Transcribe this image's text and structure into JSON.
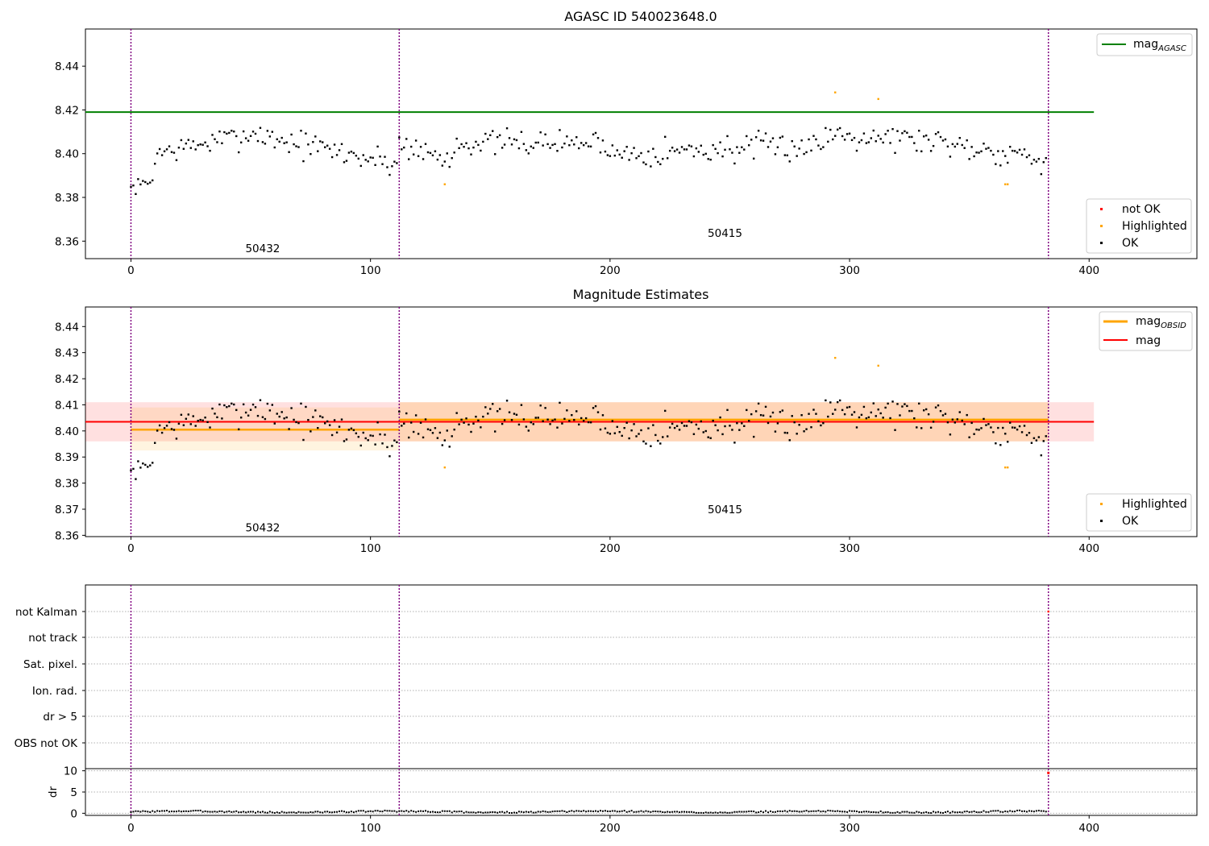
{
  "chart_data": [
    {
      "type": "scatter",
      "title": "AGASC ID 540023648.0",
      "xlabel": "",
      "ylabel": "",
      "xlim": [
        -19,
        445
      ],
      "ylim": [
        8.352,
        8.457
      ],
      "xticks": [
        0,
        100,
        200,
        300,
        400
      ],
      "yticks": [
        8.36,
        8.38,
        8.4,
        8.42,
        8.44
      ],
      "xtick_labels": [
        "0",
        "100",
        "200",
        "300",
        "400"
      ],
      "ytick_labels": [
        "8.36",
        "8.38",
        "8.40",
        "8.42",
        "8.44"
      ],
      "obs_boundaries": [
        0,
        112,
        383
      ],
      "obsid_labels": [
        {
          "text": "50432",
          "x": 55,
          "y": 8.355
        },
        {
          "text": "50415",
          "x": 248,
          "y": 8.362
        }
      ],
      "hlines": [
        {
          "name": "mag_AGASC",
          "y": 8.419,
          "x": [
            -19,
            402
          ],
          "color": "#008000"
        }
      ],
      "series": [
        {
          "name": "not OK",
          "color": "#ff0000",
          "points": []
        },
        {
          "name": "Highlighted",
          "color": "#ffa500",
          "points": [
            [
              131,
              8.386
            ],
            [
              294,
              8.428
            ],
            [
              312,
              8.425
            ],
            [
              365,
              8.386
            ],
            [
              366,
              8.386
            ]
          ]
        },
        {
          "name": "OK",
          "color": "#000000",
          "seed": 7,
          "segments": [
            {
              "x0": 0,
              "x1": 10,
              "y0": 8.384,
              "y1": 8.388,
              "amp": 0.004
            },
            {
              "x0": 10,
              "x1": 55,
              "y0": 8.4,
              "y1": 8.41,
              "amp": 0.007
            },
            {
              "x0": 55,
              "x1": 112,
              "y0": 8.408,
              "y1": 8.395,
              "amp": 0.008
            },
            {
              "x0": 112,
              "x1": 135,
              "y0": 8.405,
              "y1": 8.396,
              "amp": 0.008
            },
            {
              "x0": 135,
              "x1": 200,
              "y0": 8.405,
              "y1": 8.405,
              "amp": 0.007
            },
            {
              "x0": 200,
              "x1": 290,
              "y0": 8.4,
              "y1": 8.404,
              "amp": 0.008
            },
            {
              "x0": 290,
              "x1": 345,
              "y0": 8.41,
              "y1": 8.405,
              "amp": 0.008
            },
            {
              "x0": 345,
              "x1": 383,
              "y0": 8.404,
              "y1": 8.398,
              "amp": 0.008
            }
          ]
        }
      ],
      "legend_lines": {
        "placement": "upper right",
        "entries": [
          {
            "label": "mag",
            "sub": "AGASC",
            "color": "#008000"
          }
        ]
      },
      "legend_markers": {
        "placement": "lower right",
        "entries": [
          {
            "label": "not OK",
            "color": "#ff0000"
          },
          {
            "label": "Highlighted",
            "color": "#ffa500"
          },
          {
            "label": "OK",
            "color": "#000000"
          }
        ]
      }
    },
    {
      "type": "scatter",
      "title": "Magnitude Estimates",
      "xlabel": "",
      "ylabel": "",
      "xlim": [
        -19,
        445
      ],
      "ylim": [
        8.3595,
        8.4475
      ],
      "xticks": [
        0,
        100,
        200,
        300,
        400
      ],
      "yticks": [
        8.36,
        8.37,
        8.38,
        8.39,
        8.4,
        8.41,
        8.42,
        8.43,
        8.44
      ],
      "xtick_labels": [
        "0",
        "100",
        "200",
        "300",
        "400"
      ],
      "ytick_labels": [
        "8.36",
        "8.37",
        "8.38",
        "8.39",
        "8.40",
        "8.41",
        "8.42",
        "8.43",
        "8.44"
      ],
      "obs_boundaries": [
        0,
        112,
        383
      ],
      "obsid_labels": [
        {
          "text": "50432",
          "x": 55,
          "y": 8.3615
        },
        {
          "text": "50415",
          "x": 248,
          "y": 8.3685
        }
      ],
      "bands": [
        {
          "name": "mag band",
          "x": [
            -19,
            402
          ],
          "y": [
            8.396,
            8.411
          ],
          "color": "#ff0000",
          "opacity": 0.12
        },
        {
          "name": "obs 50432 band",
          "x": [
            0,
            112
          ],
          "y": [
            8.3925,
            8.409
          ],
          "color": "#ffa500",
          "opacity": 0.12
        },
        {
          "name": "obs 50415 band",
          "x": [
            112,
            383
          ],
          "y": [
            8.396,
            8.411
          ],
          "color": "#ffa500",
          "opacity": 0.18
        }
      ],
      "hlines": [
        {
          "name": "mag",
          "y": 8.4035,
          "x": [
            -19,
            402
          ],
          "color": "#ff0000"
        },
        {
          "name": "mag_OBSID 50432",
          "y": 8.4005,
          "x": [
            0,
            112
          ],
          "color": "#ffa500"
        },
        {
          "name": "mag_OBSID 50415",
          "y": 8.4043,
          "x": [
            112,
            383
          ],
          "color": "#ffa500"
        }
      ],
      "series": [
        {
          "name": "Highlighted",
          "color": "#ffa500",
          "points": [
            [
              131,
              8.386
            ],
            [
              294,
              8.428
            ],
            [
              312,
              8.425
            ],
            [
              365,
              8.386
            ],
            [
              366,
              8.386
            ]
          ]
        },
        {
          "name": "OK",
          "color": "#000000",
          "seed": 7,
          "segments": [
            {
              "x0": 0,
              "x1": 10,
              "y0": 8.384,
              "y1": 8.388,
              "amp": 0.004
            },
            {
              "x0": 10,
              "x1": 55,
              "y0": 8.4,
              "y1": 8.41,
              "amp": 0.007
            },
            {
              "x0": 55,
              "x1": 112,
              "y0": 8.408,
              "y1": 8.395,
              "amp": 0.008
            },
            {
              "x0": 112,
              "x1": 135,
              "y0": 8.405,
              "y1": 8.396,
              "amp": 0.008
            },
            {
              "x0": 135,
              "x1": 200,
              "y0": 8.405,
              "y1": 8.405,
              "amp": 0.007
            },
            {
              "x0": 200,
              "x1": 290,
              "y0": 8.4,
              "y1": 8.404,
              "amp": 0.008
            },
            {
              "x0": 290,
              "x1": 345,
              "y0": 8.41,
              "y1": 8.405,
              "amp": 0.008
            },
            {
              "x0": 345,
              "x1": 383,
              "y0": 8.404,
              "y1": 8.398,
              "amp": 0.008
            }
          ]
        }
      ],
      "legend_lines": {
        "placement": "upper right",
        "entries": [
          {
            "label": "mag",
            "sub": "OBSID",
            "color": "#ffa500"
          },
          {
            "label": "mag",
            "sub": "",
            "color": "#ff0000"
          }
        ]
      },
      "legend_markers": {
        "placement": "lower right",
        "entries": [
          {
            "label": "Highlighted",
            "color": "#ffa500"
          },
          {
            "label": "OK",
            "color": "#000000"
          }
        ]
      }
    },
    {
      "type": "scatter",
      "title": "",
      "xlabel": "",
      "ylabel": "",
      "xlim": [
        -19,
        445
      ],
      "obs_boundaries": [
        0,
        112,
        383
      ],
      "flag_categories": [
        "not Kalman",
        "not track",
        "Sat. pixel.",
        "Ion. rad.",
        "dr > 5",
        "OBS not OK"
      ],
      "flag_points": [
        {
          "category": "not Kalman",
          "x": 383,
          "color": "#ff0000"
        }
      ]
    },
    {
      "type": "scatter",
      "title": "",
      "xlabel": "",
      "ylabel": "dr",
      "xlim": [
        -19,
        445
      ],
      "ylim": [
        -0.5,
        10.5
      ],
      "xticks": [
        0,
        100,
        200,
        300,
        400
      ],
      "yticks": [
        0,
        5,
        10
      ],
      "xtick_labels": [
        "0",
        "100",
        "200",
        "300",
        "400"
      ],
      "ytick_labels": [
        "0",
        "5",
        "10"
      ],
      "obs_boundaries": [
        0,
        112,
        383
      ],
      "dr_points": {
        "x_range": [
          0,
          382
        ],
        "base": 0.35,
        "amp": 0.35,
        "color": "#000000"
      },
      "dr_outlier": {
        "x": 383,
        "y": 9.5,
        "color": "#ff0000"
      }
    }
  ]
}
